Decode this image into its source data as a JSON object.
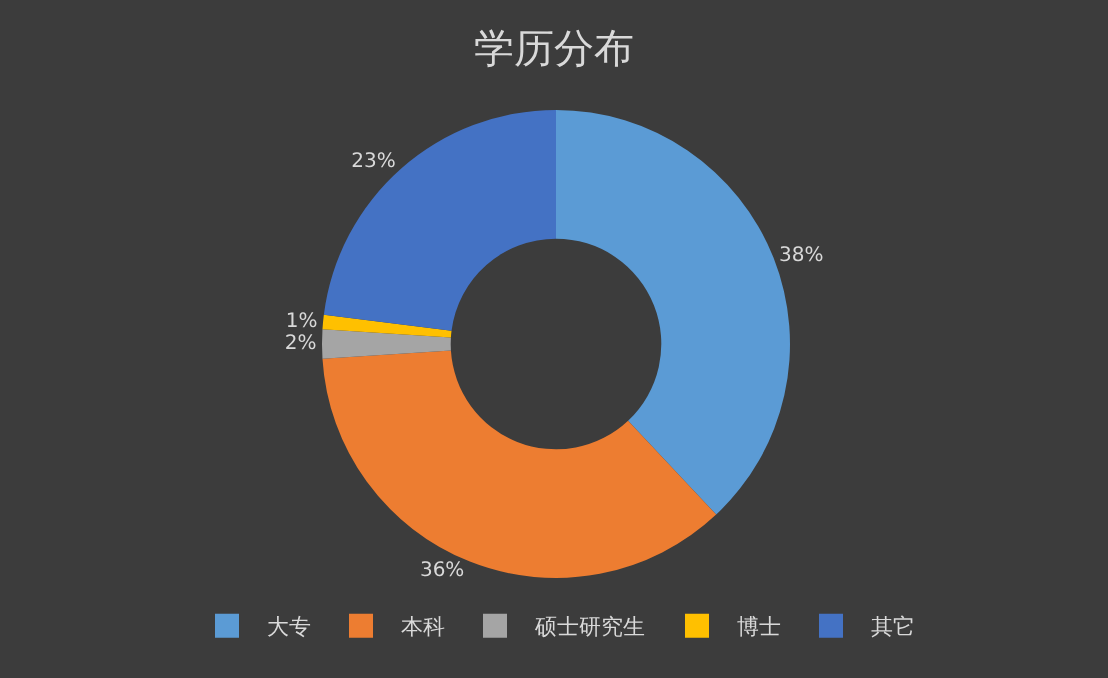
{
  "chart_data": {
    "type": "donut",
    "title": "学历分布",
    "categories": [
      "大专",
      "本科",
      "硕士研究生",
      "博士",
      "其它"
    ],
    "values": [
      38,
      36,
      2,
      1,
      23
    ],
    "colors": [
      "#5b9bd5",
      "#ed7d31",
      "#a5a5a5",
      "#ffc000",
      "#4472c4"
    ],
    "value_labels": [
      "38%",
      "36%",
      "2%",
      "1%",
      "23%"
    ],
    "legend": "bottom"
  }
}
